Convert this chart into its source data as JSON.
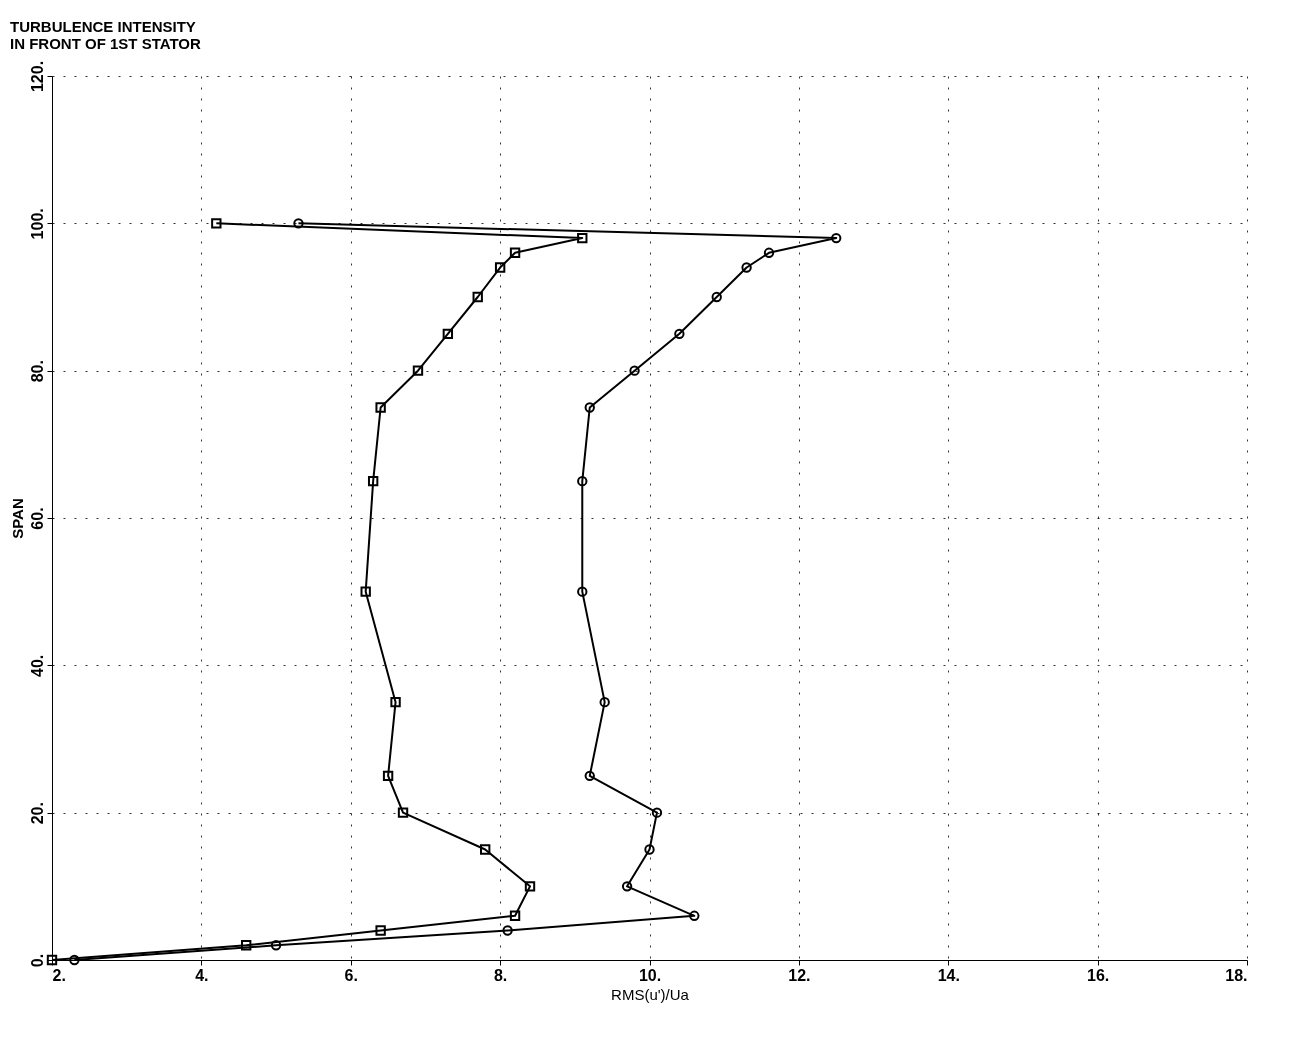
{
  "chart_data": {
    "type": "line",
    "title": "TURBULENCE INTENSITY\nIN FRONT OF 1ST STATOR",
    "xlabel": "RMS(u')/Ua",
    "ylabel": "SPAN",
    "xlim": [
      2,
      18
    ],
    "ylim": [
      0,
      120
    ],
    "xticks": [
      {
        "value": 2,
        "label": "2."
      },
      {
        "value": 4,
        "label": "4."
      },
      {
        "value": 6,
        "label": "6."
      },
      {
        "value": 8,
        "label": "8."
      },
      {
        "value": 10,
        "label": "10."
      },
      {
        "value": 12,
        "label": "12."
      },
      {
        "value": 14,
        "label": "14."
      },
      {
        "value": 16,
        "label": "16."
      },
      {
        "value": 18,
        "label": "18."
      }
    ],
    "yticks": [
      {
        "value": 0,
        "label": "0."
      },
      {
        "value": 20,
        "label": "20."
      },
      {
        "value": 40,
        "label": "40."
      },
      {
        "value": 60,
        "label": "60."
      },
      {
        "value": 80,
        "label": "80."
      },
      {
        "value": 100,
        "label": "100."
      },
      {
        "value": 120,
        "label": "120."
      }
    ],
    "grid": true,
    "line_style": "solid",
    "series": [
      {
        "color": "#000000",
        "marker": "square",
        "x": [
          4.2,
          9.1,
          8.2,
          8.0,
          7.7,
          7.3,
          6.9,
          6.4,
          6.3,
          6.2,
          6.6,
          6.5,
          6.7,
          7.8,
          8.4,
          8.2,
          6.4,
          4.6,
          2.0
        ],
        "values": [
          100,
          98,
          96,
          94,
          90,
          85,
          80,
          75,
          65,
          50,
          35,
          25,
          20,
          15,
          10,
          6,
          4,
          2,
          0
        ]
      },
      {
        "color": "#000000",
        "marker": "circle",
        "x": [
          5.3,
          12.5,
          11.6,
          11.3,
          10.9,
          10.4,
          9.8,
          9.2,
          9.1,
          9.1,
          9.4,
          9.2,
          10.1,
          10.0,
          9.7,
          10.6,
          8.1,
          5.0,
          2.3
        ],
        "values": [
          100,
          98,
          96,
          94,
          90,
          85,
          80,
          75,
          65,
          50,
          35,
          25,
          20,
          15,
          10,
          6,
          4,
          2,
          0
        ]
      }
    ]
  }
}
